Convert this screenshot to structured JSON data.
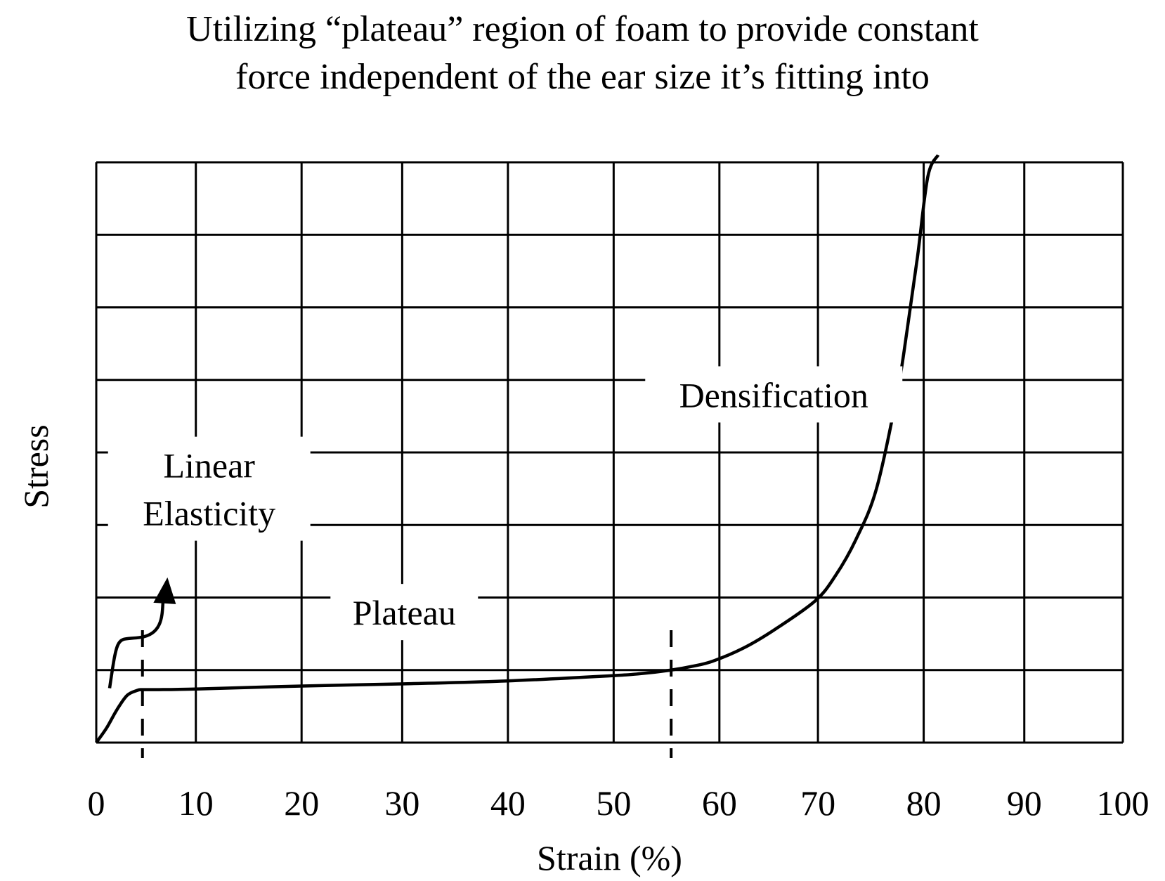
{
  "chart_data": {
    "type": "line",
    "title": "Utilizing “plateau” region of foam to provide constant force independent of the ear size it’s fitting into",
    "title_lines": [
      "Utilizing “plateau” region of foam to provide constant",
      "force independent of the ear size it’s fitting into"
    ],
    "xlabel": "Strain (%)",
    "ylabel": "Stress",
    "xlim": [
      0,
      100
    ],
    "ylim": [
      0,
      8
    ],
    "x_ticks": [
      "0",
      "10",
      "20",
      "30",
      "40",
      "50",
      "60",
      "70",
      "80",
      "90",
      "100"
    ],
    "x_gridlines": [
      0,
      9.7,
      20,
      29.8,
      40.1,
      50.4,
      60.7,
      70.3,
      80.6,
      90.4,
      100
    ],
    "y_gridlines": [
      0,
      1,
      2,
      3,
      4,
      5,
      6,
      7,
      8
    ],
    "grid": true,
    "series": [
      {
        "x": [
          0,
          1,
          2,
          3,
          4,
          4.5,
          6,
          10,
          20,
          30,
          40,
          50,
          53,
          56,
          58,
          60,
          63,
          66,
          70,
          72,
          74,
          76,
          78,
          79,
          80,
          81,
          82
        ],
        "y": [
          0,
          0.2,
          0.45,
          0.65,
          0.72,
          0.73,
          0.73,
          0.74,
          0.78,
          0.81,
          0.85,
          0.92,
          0.95,
          1.0,
          1.05,
          1.12,
          1.3,
          1.55,
          1.95,
          2.3,
          2.8,
          3.5,
          4.8,
          5.7,
          6.7,
          7.8,
          8.1
        ]
      }
    ],
    "dashed_markers_x": [
      4.5,
      56
    ],
    "annotations": [
      {
        "text_lines": [
          "Linear",
          "Elasticity"
        ],
        "x": 11,
        "y": 3.5
      },
      {
        "text": "Plateau",
        "x": 30,
        "y": 1.8
      },
      {
        "text": "Densification",
        "x": 66,
        "y": 4.8
      }
    ],
    "arrow": {
      "from": [
        1.3,
        0.75
      ],
      "to": [
        6.8,
        2.2
      ]
    }
  }
}
